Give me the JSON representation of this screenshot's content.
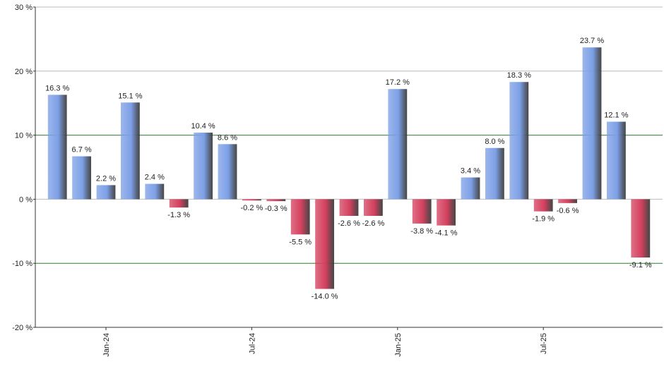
{
  "chart_data": {
    "type": "bar",
    "categories": [
      null,
      null,
      "Jan-24",
      null,
      null,
      null,
      null,
      null,
      "Jul-24",
      null,
      null,
      null,
      null,
      null,
      "Jan-25",
      null,
      null,
      null,
      null,
      null,
      "Jul-25",
      null,
      null,
      null,
      null
    ],
    "values": [
      16.3,
      6.7,
      2.2,
      15.1,
      2.4,
      -1.3,
      10.4,
      8.6,
      -0.2,
      -0.3,
      -5.5,
      -14.0,
      -2.6,
      -2.6,
      17.2,
      -3.8,
      -4.1,
      3.4,
      8.0,
      18.3,
      -1.9,
      -0.6,
      23.7,
      12.1,
      -9.1
    ],
    "value_labels": [
      "16.3 %",
      "6.7 %",
      "2.2 %",
      "15.1 %",
      "2.4 %",
      "-1.3 %",
      "10.4 %",
      "8.6 %",
      "-0.2 %",
      "-0.3 %",
      "-5.5 %",
      "-14.0 %",
      "-2.6 %",
      "-2.6 %",
      "17.2 %",
      "-3.8 %",
      "-4.1 %",
      "3.4 %",
      "8.0 %",
      "18.3 %",
      "-1.9 %",
      "-0.6 %",
      "23.7 %",
      "12.1 %",
      "-9.1 %"
    ],
    "positive_color": "#7c9fe6",
    "negative_color": "#d4405e",
    "ylim": [
      -20,
      30
    ],
    "yticks": [
      {
        "value": -20,
        "label": "-20 %"
      },
      {
        "value": -10,
        "label": "-10 %"
      },
      {
        "value": 0,
        "label": "0 %"
      },
      {
        "value": 10,
        "label": "10 %"
      },
      {
        "value": 20,
        "label": "20 %"
      },
      {
        "value": 30,
        "label": "30 %"
      }
    ],
    "grid": true,
    "grid_colors": [
      "#bbbbbb",
      "#2e7d32",
      "#bbbbbb",
      "#2e7d32",
      "#bbbbbb",
      "#bbbbbb"
    ]
  }
}
